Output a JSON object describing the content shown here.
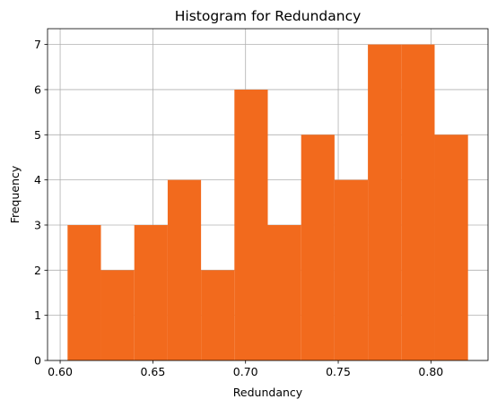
{
  "chart_data": {
    "type": "bar",
    "title": "Histogram for Redundancy",
    "xlabel": "Redundancy",
    "ylabel": "Frequency",
    "bins": [
      {
        "x0": 0.604,
        "x1": 0.622,
        "count": 3
      },
      {
        "x0": 0.622,
        "x1": 0.64,
        "count": 2
      },
      {
        "x0": 0.64,
        "x1": 0.658,
        "count": 3
      },
      {
        "x0": 0.658,
        "x1": 0.676,
        "count": 4
      },
      {
        "x0": 0.676,
        "x1": 0.694,
        "count": 2
      },
      {
        "x0": 0.694,
        "x1": 0.712,
        "count": 6
      },
      {
        "x0": 0.712,
        "x1": 0.73,
        "count": 3
      },
      {
        "x0": 0.73,
        "x1": 0.748,
        "count": 5
      },
      {
        "x0": 0.748,
        "x1": 0.766,
        "count": 4
      },
      {
        "x0": 0.766,
        "x1": 0.784,
        "count": 7
      },
      {
        "x0": 0.784,
        "x1": 0.802,
        "count": 7
      },
      {
        "x0": 0.802,
        "x1": 0.82,
        "count": 5
      }
    ],
    "xlim": [
      0.5932,
      0.8308
    ],
    "ylim": [
      0,
      7.35
    ],
    "xticks": [
      0.6,
      0.65,
      0.7,
      0.75,
      0.8
    ],
    "xtick_labels": [
      "0.60",
      "0.65",
      "0.70",
      "0.75",
      "0.80"
    ],
    "yticks": [
      0,
      1,
      2,
      3,
      4,
      5,
      6,
      7
    ],
    "ytick_labels": [
      "0",
      "1",
      "2",
      "3",
      "4",
      "5",
      "6",
      "7"
    ],
    "grid": true,
    "bar_color": "#f26a1d"
  }
}
